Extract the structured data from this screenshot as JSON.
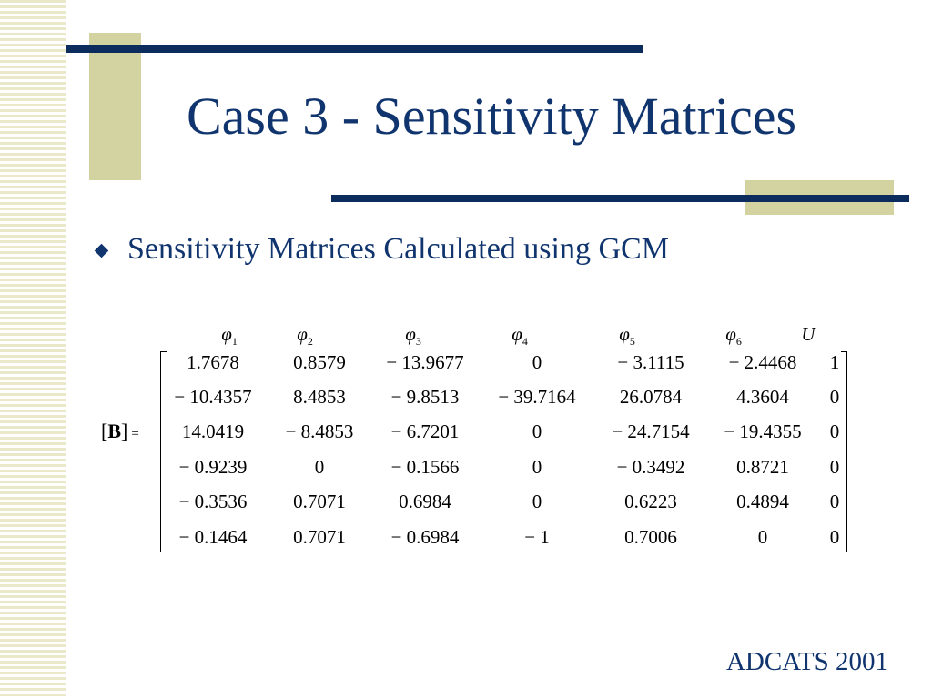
{
  "slide": {
    "title": "Case 3 - Sensitivity Matrices",
    "bullet": "Sensitivity Matrices Calculated using GCM",
    "footer": "ADCATS 2001"
  },
  "matrix": {
    "symbol": "B",
    "equals": "=",
    "headers": [
      {
        "sym": "φ",
        "sub": "1"
      },
      {
        "sym": "φ",
        "sub": "2"
      },
      {
        "sym": "φ",
        "sub": "3"
      },
      {
        "sym": "φ",
        "sub": "4"
      },
      {
        "sym": "φ",
        "sub": "5"
      },
      {
        "sym": "φ",
        "sub": "6"
      },
      {
        "sym": "U",
        "sub": ""
      }
    ],
    "rows": [
      [
        "1.7678",
        "0.8579",
        "− 13.9677",
        "0",
        "− 3.1115",
        "− 2.4468",
        "1"
      ],
      [
        "− 10.4357",
        "8.4853",
        "− 9.8513",
        "− 39.7164",
        "26.0784",
        "4.3604",
        "0"
      ],
      [
        "14.0419",
        "− 8.4853",
        "− 6.7201",
        "0",
        "− 24.7154",
        "− 19.4355",
        "0"
      ],
      [
        "− 0.9239",
        "0",
        "− 0.1566",
        "0",
        "− 0.3492",
        "0.8721",
        "0"
      ],
      [
        "− 0.3536",
        "0.7071",
        "0.6984",
        "0",
        "0.6223",
        "0.4894",
        "0"
      ],
      [
        "− 0.1464",
        "0.7071",
        "− 0.6984",
        "− 1",
        "0.7006",
        "0",
        "0"
      ]
    ]
  }
}
